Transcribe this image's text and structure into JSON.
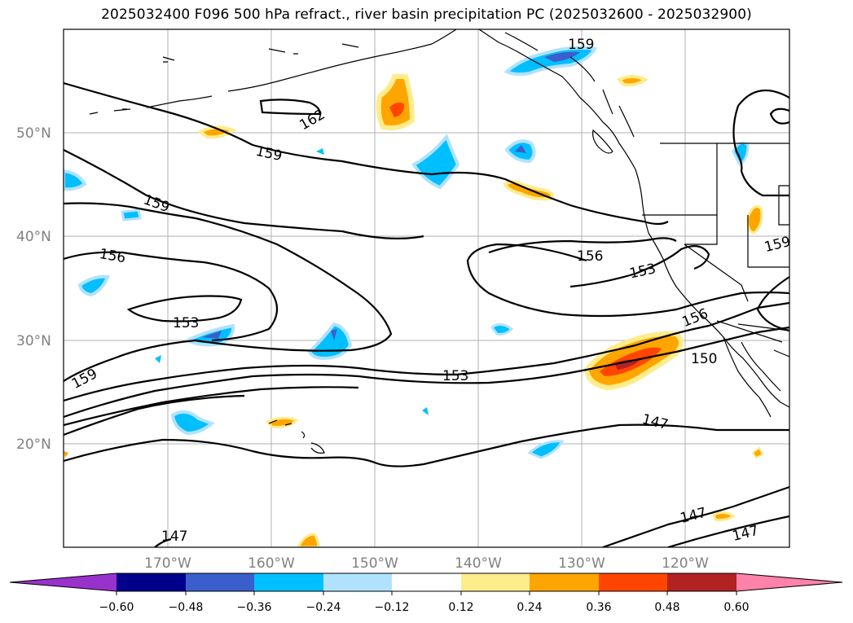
{
  "title": "2025032400 F096 500 hPa refract., river basin precipitation PC (2025032600 - 2025032900)",
  "latitude_labels": [
    "50°N",
    "40°N",
    "30°N",
    "20°N"
  ],
  "longitude_labels": [
    "170°W",
    "160°W",
    "150°W",
    "140°W",
    "130°W",
    "120°W"
  ],
  "contour_labels": [
    "159",
    "162",
    "159",
    "159",
    "156",
    "153",
    "153",
    "159",
    "156",
    "153",
    "156",
    "150",
    "147",
    "147",
    "147",
    "147",
    "159"
  ],
  "colorbar": {
    "ticks": [
      "−0.60",
      "−0.48",
      "−0.36",
      "−0.24",
      "−0.12",
      "0.12",
      "0.24",
      "0.36",
      "0.48",
      "0.60"
    ],
    "colors": [
      "#9932cc",
      "#00008b",
      "#3a5fcd",
      "#00bfff",
      "#b0e2ff",
      "#ffffff",
      "#ffec8b",
      "#ffa500",
      "#ff4500",
      "#b22222",
      "#ff82ab"
    ]
  },
  "colors": {
    "grid": "#b0b0b0",
    "coast": "#000000",
    "axis_label": "#808080"
  }
}
